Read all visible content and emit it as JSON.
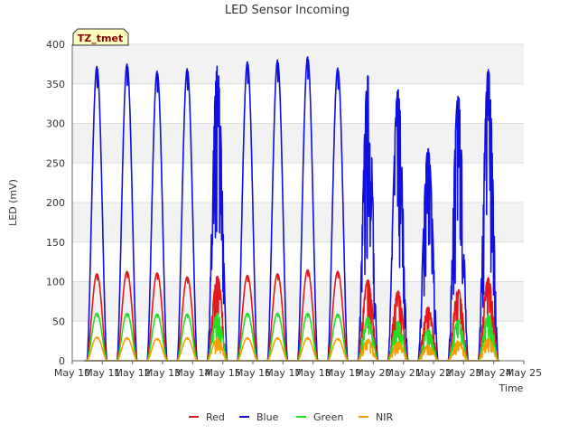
{
  "chart_data": {
    "type": "line",
    "title": "LED Sensor Incoming",
    "xlabel": "Time",
    "ylabel": "LED (mV)",
    "ylim": [
      0,
      400
    ],
    "yticks": [
      0,
      50,
      100,
      150,
      200,
      250,
      300,
      350,
      400
    ],
    "x_ticks": [
      "May 10",
      "May 11",
      "May 12",
      "May 13",
      "May 14",
      "May 15",
      "May 16",
      "May 17",
      "May 18",
      "May 19",
      "May 20",
      "May 21",
      "May 22",
      "May 23",
      "May 24",
      "May 25"
    ],
    "x_range_days": [
      0,
      15
    ],
    "site_badge": "TZ_tmet",
    "grid": true,
    "legend_position": "bottom",
    "series": [
      {
        "name": "Red",
        "color": "#e31a1c"
      },
      {
        "name": "Blue",
        "color": "#1010e0"
      },
      {
        "name": "Green",
        "color": "#22dd22"
      },
      {
        "name": "NIR",
        "color": "#f5a000"
      }
    ],
    "daily_peaks": {
      "day_offsets": [
        0.82,
        1.82,
        2.82,
        3.82,
        4.82,
        5.82,
        6.82,
        7.82,
        8.82,
        9.82,
        10.82,
        11.82,
        12.82,
        13.82
      ],
      "Red": [
        110,
        113,
        111,
        106,
        107,
        108,
        110,
        115,
        113,
        102,
        88,
        68,
        90,
        105
      ],
      "Blue": [
        372,
        375,
        366,
        369,
        373,
        378,
        380,
        384,
        370,
        360,
        343,
        268,
        335,
        368
      ],
      "Green": [
        60,
        60,
        59,
        59,
        60,
        60,
        60,
        60,
        59,
        55,
        50,
        40,
        52,
        58
      ],
      "NIR": [
        30,
        29,
        28,
        29,
        28,
        29,
        29,
        29,
        28,
        27,
        24,
        20,
        25,
        28
      ],
      "cloudy_days": [
        4,
        9,
        10,
        11,
        12,
        13
      ]
    }
  }
}
